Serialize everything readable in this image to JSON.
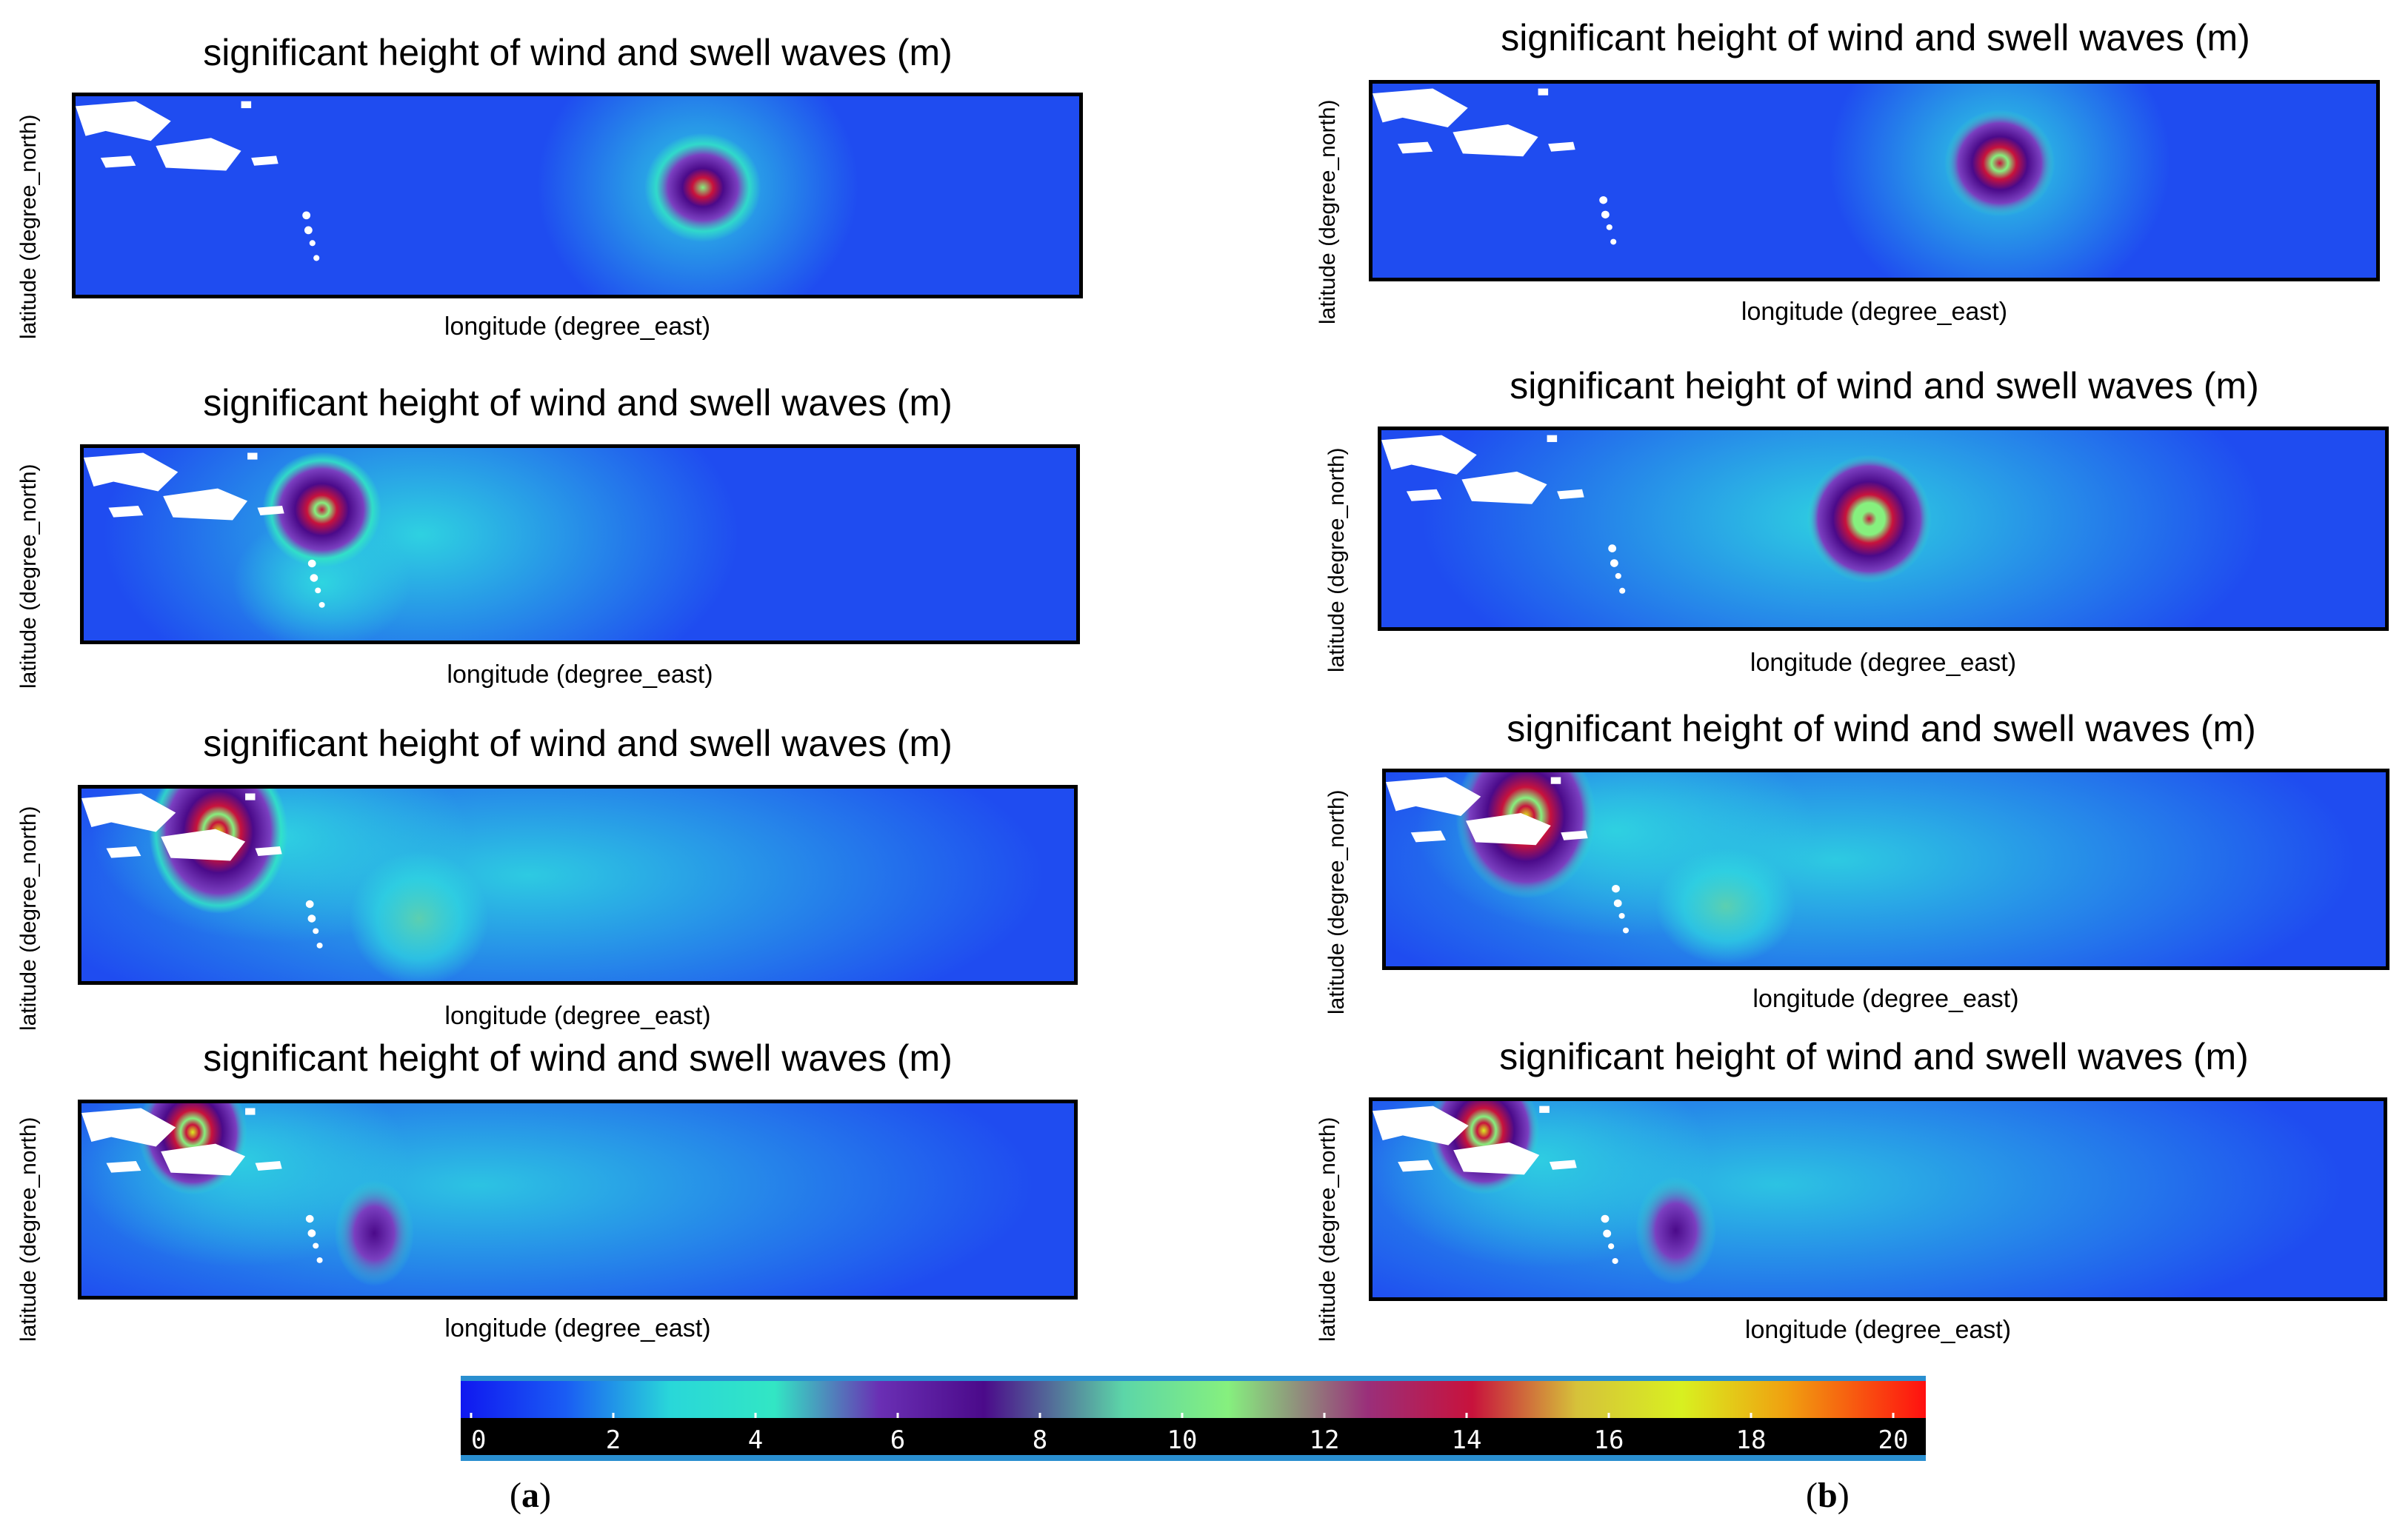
{
  "chart_data": {
    "type": "heatmap",
    "variable": "significant height of wind and swell waves (m)",
    "panels": [
      {
        "column": "a",
        "row": 1,
        "title": "significant height of wind and swell waves (m)",
        "xlabel": "longitude (degree_east)",
        "ylabel": "latitude (degree_north)"
      },
      {
        "column": "a",
        "row": 2,
        "title": "significant height of wind and swell waves (m)",
        "xlabel": "longitude (degree_east)",
        "ylabel": "latitude (degree_north)"
      },
      {
        "column": "a",
        "row": 3,
        "title": "significant height of wind and swell waves (m)",
        "xlabel": "longitude (degree_east)",
        "ylabel": "latitude (degree_north)"
      },
      {
        "column": "a",
        "row": 4,
        "title": "significant height of wind and swell waves (m)",
        "xlabel": "longitude (degree_east)",
        "ylabel": "latitude (degree_north)"
      },
      {
        "column": "b",
        "row": 1,
        "title": "significant height of wind and swell waves (m)",
        "xlabel": "longitude (degree_east)",
        "ylabel": "latitude (degree_north)"
      },
      {
        "column": "b",
        "row": 2,
        "title": "significant height of wind and swell waves (m)",
        "xlabel": "longitude (degree_east)",
        "ylabel": "latitude (degree_north)"
      },
      {
        "column": "b",
        "row": 3,
        "title": "significant height of wind and swell waves (m)",
        "xlabel": "longitude (degree_east)",
        "ylabel": "latitude (degree_north)"
      },
      {
        "column": "b",
        "row": 4,
        "title": "significant height of wind and swell waves (m)",
        "xlabel": "longitude (degree_east)",
        "ylabel": "latitude (degree_north)"
      }
    ],
    "colorbar": {
      "ticks": [
        "0",
        "2",
        "4",
        "6",
        "8",
        "10",
        "12",
        "14",
        "16",
        "18",
        "20"
      ],
      "range": [
        0,
        21
      ],
      "stops": [
        {
          "value": 0,
          "color": "#1018f0"
        },
        {
          "value": 1.5,
          "color": "#1a5cf4"
        },
        {
          "value": 3,
          "color": "#29d7d9"
        },
        {
          "value": 4.5,
          "color": "#32e6c4"
        },
        {
          "value": 6,
          "color": "#6a2fb4"
        },
        {
          "value": 7.5,
          "color": "#4b0a8a"
        },
        {
          "value": 9.5,
          "color": "#5cd6a8"
        },
        {
          "value": 11,
          "color": "#86f07e"
        },
        {
          "value": 13,
          "color": "#9a2f7a"
        },
        {
          "value": 14.5,
          "color": "#c8123c"
        },
        {
          "value": 16,
          "color": "#d6c23a"
        },
        {
          "value": 17.5,
          "color": "#d8f020"
        },
        {
          "value": 19,
          "color": "#f0a010"
        },
        {
          "value": 21,
          "color": "#ff1010"
        }
      ]
    }
  },
  "sublabels": {
    "a": "a",
    "b": "b"
  }
}
